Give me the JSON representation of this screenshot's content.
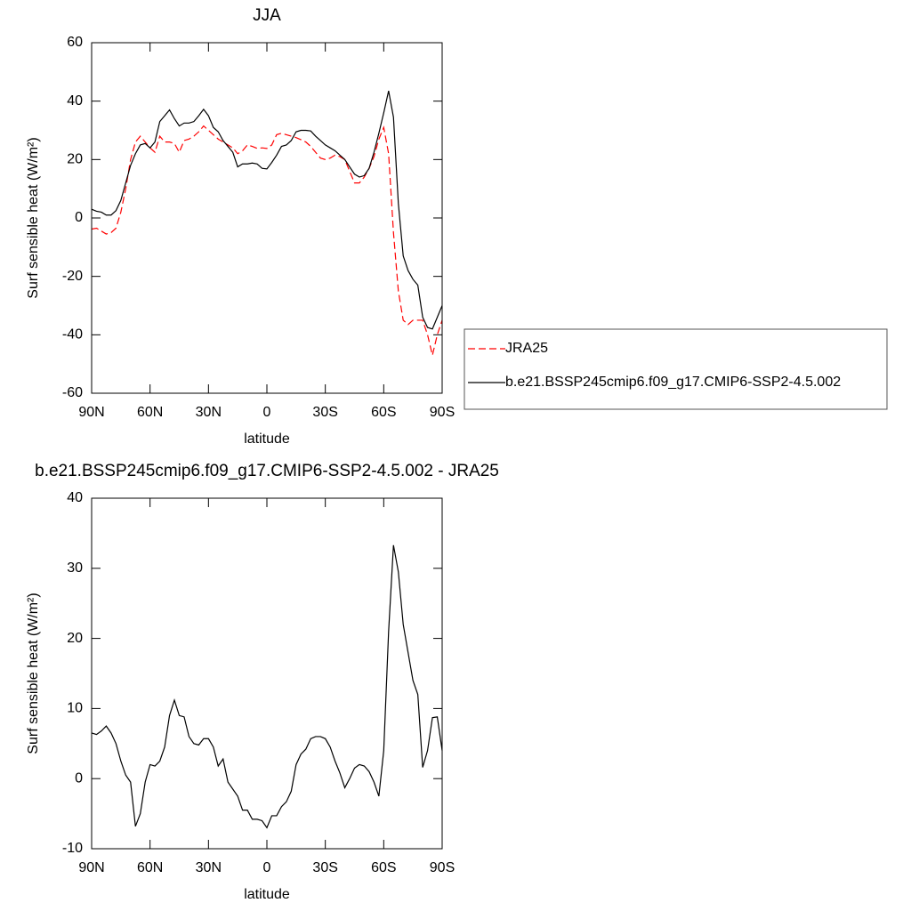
{
  "chart_data": [
    {
      "type": "line",
      "title": "JJA",
      "x_label": "latitude",
      "y_label": "Surf sensible heat (W/m²)",
      "xlim": [
        90,
        -90
      ],
      "xticks": [
        {
          "value": 90,
          "label": "90N"
        },
        {
          "value": 60,
          "label": "60N"
        },
        {
          "value": 30,
          "label": "30N"
        },
        0,
        {
          "value": -30,
          "label": "30S"
        },
        {
          "value": -60,
          "label": "60S"
        },
        {
          "value": -90,
          "label": "90S"
        }
      ],
      "ylim": [
        -60,
        60
      ],
      "yticks": [
        -60,
        -40,
        -20,
        0,
        20,
        40,
        60
      ],
      "x": [
        90,
        87.5,
        85,
        82.5,
        80,
        77.5,
        75,
        72.5,
        70,
        67.5,
        65,
        62.5,
        60,
        57.5,
        55,
        52.5,
        50,
        47.5,
        45,
        42.5,
        40,
        37.5,
        35,
        32.5,
        30,
        27.5,
        25,
        22.5,
        20,
        17.5,
        15,
        12.5,
        10,
        7.5,
        5,
        2.5,
        0,
        -2.5,
        -5,
        -7.5,
        -10,
        -12.5,
        -15,
        -17.5,
        -20,
        -22.5,
        -25,
        -27.5,
        -30,
        -32.5,
        -35,
        -37.5,
        -40,
        -42.5,
        -45,
        -47.5,
        -50,
        -52.5,
        -55,
        -57.5,
        -60,
        -62.5,
        -65,
        -67.5,
        -70,
        -72.5,
        -75,
        -77.5,
        -80,
        -82.5,
        -85,
        -87.5,
        -90
      ],
      "series": [
        {
          "name": "JRA25",
          "color": "#ff0000",
          "style": "dashed",
          "values": [
            -3.8,
            -3.5,
            -4.5,
            -5.5,
            -5,
            -3.5,
            2,
            10,
            20,
            26,
            28,
            26,
            24,
            22.5,
            28,
            26,
            26,
            25.5,
            22.5,
            26.5,
            27,
            28,
            29.5,
            31.5,
            30,
            28.5,
            27,
            26,
            25,
            24,
            22,
            23,
            25,
            24.5,
            23.8,
            24,
            23.8,
            25,
            28.5,
            29,
            28.5,
            28,
            27.5,
            26.8,
            26,
            24.5,
            22.5,
            20.5,
            20,
            20.5,
            21.5,
            21,
            20,
            16,
            12,
            12,
            14,
            17,
            21,
            27,
            31,
            22,
            -5,
            -25,
            -35,
            -36.5,
            -35,
            -35,
            -35,
            -40,
            -47,
            -40,
            -35
          ]
        },
        {
          "name": "b.e21.BSSP245cmip6.f09_g17.CMIP6-SSP2-4.5.002",
          "color": "#000000",
          "style": "solid",
          "values": [
            3,
            2.3,
            2,
            1,
            1,
            2.5,
            6,
            12,
            18,
            22,
            25,
            25.5,
            24,
            26,
            33,
            35,
            37,
            34,
            31.5,
            32.5,
            32.5,
            33,
            35,
            37.2,
            35,
            31,
            29.5,
            26.5,
            24.5,
            22.5,
            17.5,
            18.5,
            18.5,
            18.8,
            18.5,
            17,
            16.8,
            19,
            21.5,
            24.5,
            25,
            26.5,
            29.5,
            30,
            30,
            29.8,
            28,
            26.5,
            25,
            24,
            23,
            21.5,
            20,
            17.5,
            15,
            14,
            14.5,
            17,
            22.5,
            29,
            36,
            43.5,
            34.5,
            5,
            -13,
            -18,
            -21,
            -23,
            -34,
            -37.5,
            -38,
            -34,
            -30
          ]
        }
      ]
    },
    {
      "type": "line",
      "title": "b.e21.BSSP245cmip6.f09_g17.CMIP6-SSP2-4.5.002 - JRA25",
      "x_label": "latitude",
      "y_label": "Surf sensible heat (W/m²)",
      "xlim": [
        90,
        -90
      ],
      "xticks": [
        {
          "value": 90,
          "label": "90N"
        },
        {
          "value": 60,
          "label": "60N"
        },
        {
          "value": 30,
          "label": "30N"
        },
        0,
        {
          "value": -30,
          "label": "30S"
        },
        {
          "value": -60,
          "label": "60S"
        },
        {
          "value": -90,
          "label": "90S"
        }
      ],
      "ylim": [
        -10,
        40
      ],
      "yticks": [
        -10,
        0,
        10,
        20,
        30,
        40
      ],
      "x": [
        90,
        87.5,
        85,
        82.5,
        80,
        77.5,
        75,
        72.5,
        70,
        67.5,
        65,
        62.5,
        60,
        57.5,
        55,
        52.5,
        50,
        47.5,
        45,
        42.5,
        40,
        37.5,
        35,
        32.5,
        30,
        27.5,
        25,
        22.5,
        20,
        17.5,
        15,
        12.5,
        10,
        7.5,
        5,
        2.5,
        0,
        -2.5,
        -5,
        -7.5,
        -10,
        -12.5,
        -15,
        -17.5,
        -20,
        -22.5,
        -25,
        -27.5,
        -30,
        -32.5,
        -35,
        -37.5,
        -40,
        -42.5,
        -45,
        -47.5,
        -50,
        -52.5,
        -55,
        -57.5,
        -60,
        -62.5,
        -65,
        -67.5,
        -70,
        -72.5,
        -75,
        -77.5,
        -80,
        -82.5,
        -85,
        -87.5,
        -90
      ],
      "series": [
        {
          "color": "#000000",
          "style": "solid",
          "values": [
            6.5,
            6.3,
            6.8,
            7.5,
            6.5,
            5,
            2.5,
            0.5,
            -0.5,
            -6.8,
            -5,
            -0.5,
            2,
            1.8,
            2.5,
            4.5,
            9,
            11.2,
            9,
            8.8,
            6,
            5,
            4.8,
            5.7,
            5.7,
            4.5,
            1.8,
            2.8,
            -0.5,
            -1.5,
            -2.5,
            -4.5,
            -4.5,
            -5.8,
            -5.8,
            -6,
            -7,
            -5.3,
            -5.3,
            -4,
            -3.3,
            -1.8,
            2,
            3.5,
            4.2,
            5.7,
            6,
            6,
            5.7,
            4.5,
            2.5,
            0.8,
            -1.3,
            0,
            1.5,
            2,
            1.8,
            1,
            -0.5,
            -2.5,
            4,
            21,
            33.3,
            29.5,
            22,
            18,
            14,
            12,
            1.6,
            4,
            8.7,
            8.8,
            4
          ]
        }
      ]
    }
  ]
}
